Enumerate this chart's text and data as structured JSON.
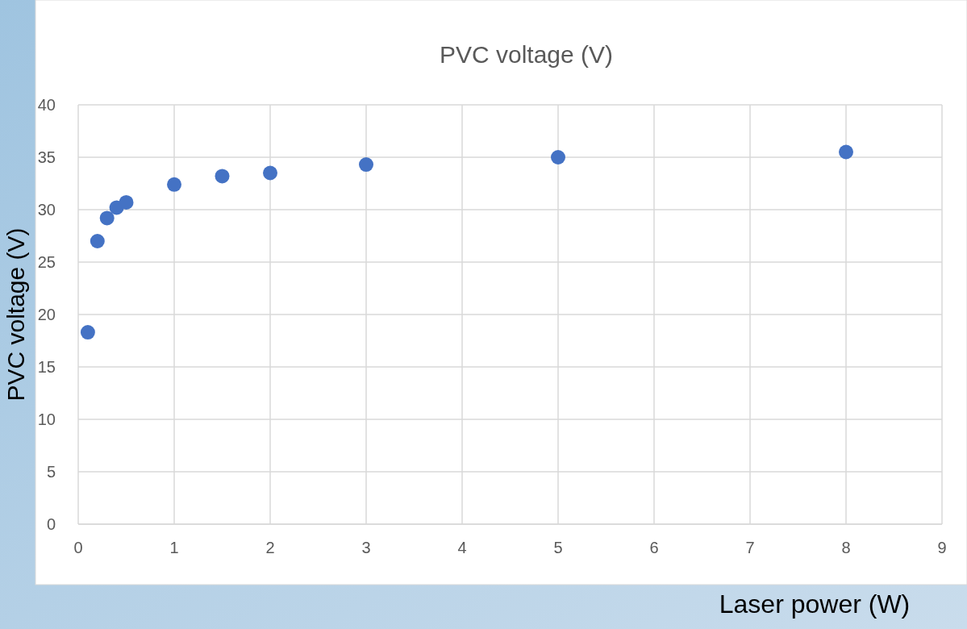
{
  "chart_data": {
    "type": "scatter",
    "title": "PVC voltage (V)",
    "xlabel": "Laser power (W)",
    "ylabel": "PVC voltage (V)",
    "x": [
      0.1,
      0.2,
      0.3,
      0.4,
      0.5,
      1,
      1.5,
      2,
      3,
      5,
      8
    ],
    "series": [
      {
        "color": "#4472c4",
        "values": [
          18.3,
          27,
          29.2,
          30.2,
          30.7,
          32.4,
          33.2,
          33.5,
          34.3,
          35,
          35.5
        ]
      }
    ],
    "xlim": [
      0,
      9
    ],
    "xticks": [
      0,
      1,
      2,
      3,
      4,
      5,
      6,
      7,
      8,
      9
    ],
    "ylim": [
      0,
      40
    ],
    "yticks": [
      0,
      5,
      10,
      15,
      20,
      25,
      30,
      35,
      40
    ],
    "grid": true,
    "marker": "circle"
  }
}
